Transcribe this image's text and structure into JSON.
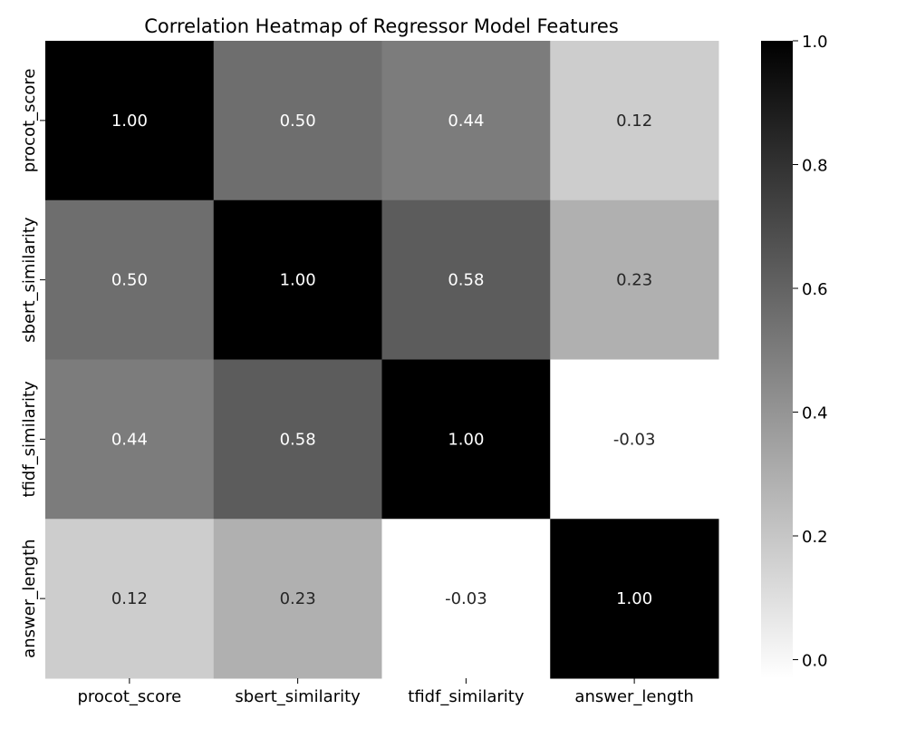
{
  "chart_data": {
    "type": "heatmap",
    "title": "Correlation Heatmap of Regressor Model Features",
    "xlabel": "",
    "ylabel": "",
    "x_categories": [
      "procot_score",
      "sbert_similarity",
      "tfidf_similarity",
      "answer_length"
    ],
    "y_categories": [
      "procot_score",
      "sbert_similarity",
      "tfidf_similarity",
      "answer_length"
    ],
    "values": [
      [
        1.0,
        0.5,
        0.44,
        0.12
      ],
      [
        0.5,
        1.0,
        0.58,
        0.23
      ],
      [
        0.44,
        0.58,
        1.0,
        -0.03
      ],
      [
        0.12,
        0.23,
        -0.03,
        1.0
      ]
    ],
    "value_format": "2f",
    "colormap": "Greys",
    "vmin": -0.03,
    "vmax": 1.0,
    "colorbar": {
      "ticks": [
        0.0,
        0.2,
        0.4,
        0.6,
        0.8,
        1.0
      ],
      "tick_labels": [
        "0.0",
        "0.2",
        "0.4",
        "0.6",
        "0.8",
        "1.0"
      ],
      "placement": "right"
    },
    "grid": false,
    "colors": {
      "low": "#ffffff",
      "high": "#000000",
      "dark_text": "#262626",
      "light_text": "#ffffff"
    }
  }
}
